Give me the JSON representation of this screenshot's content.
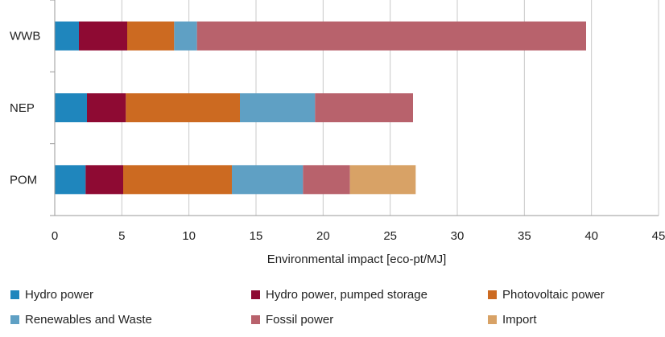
{
  "chart_data": {
    "type": "bar",
    "orientation": "horizontal",
    "stacked": true,
    "categories": [
      "WWB",
      "NEP",
      "POM"
    ],
    "series": [
      {
        "name": "Hydro power",
        "color": "#1f86bd",
        "values": [
          1.8,
          2.4,
          2.3
        ]
      },
      {
        "name": "Hydro power, pumped storage",
        "color": "#8e0a33",
        "values": [
          3.6,
          2.9,
          2.8
        ]
      },
      {
        "name": "Photovoltaic power",
        "color": "#cc6a21",
        "values": [
          3.5,
          8.5,
          8.1
        ]
      },
      {
        "name": "Renewables and Waste",
        "color": "#5fa0c4",
        "values": [
          1.7,
          5.6,
          5.3
        ]
      },
      {
        "name": "Fossil power",
        "color": "#b8626c",
        "values": [
          29.0,
          7.3,
          3.5
        ]
      },
      {
        "name": "Import",
        "color": "#d8a266",
        "values": [
          0,
          0,
          4.9
        ]
      }
    ],
    "xlabel": "Environmental impact [eco-pt/MJ]",
    "ylabel": "",
    "title": "",
    "xlim": [
      0,
      45
    ],
    "xticks": [
      0,
      5,
      10,
      15,
      20,
      25,
      30,
      35,
      40,
      45
    ],
    "grid": "vertical",
    "legend_position": "bottom"
  }
}
